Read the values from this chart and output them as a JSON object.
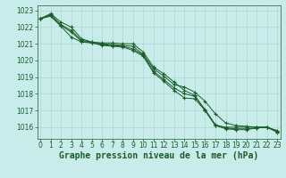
{
  "title": "Graphe pression niveau de la mer (hPa)",
  "background_color": "#c8ece9",
  "grid_color": "#b0d4d0",
  "line_color": "#1a5c2a",
  "hours": [
    0,
    1,
    2,
    3,
    4,
    5,
    6,
    7,
    8,
    9,
    10,
    11,
    12,
    13,
    14,
    15,
    16,
    17,
    18,
    19,
    20,
    21,
    22,
    23
  ],
  "series": [
    [
      1022.5,
      1022.8,
      1022.3,
      1022.0,
      1021.3,
      1021.1,
      1021.05,
      1021.05,
      1021.0,
      1021.0,
      1020.5,
      1019.6,
      1019.2,
      1018.7,
      1018.2,
      1017.9,
      1017.0,
      1016.1,
      1016.0,
      1016.0,
      1016.0,
      1016.0,
      1016.0,
      1015.8
    ],
    [
      1022.5,
      1022.75,
      1022.15,
      1021.8,
      1021.2,
      1021.1,
      1021.0,
      1020.95,
      1020.9,
      1020.85,
      1020.35,
      1019.5,
      1019.05,
      1018.55,
      1018.4,
      1018.1,
      1017.55,
      1016.8,
      1016.25,
      1016.1,
      1016.05,
      1016.0,
      1016.0,
      1015.75
    ],
    [
      1022.5,
      1022.7,
      1022.1,
      1021.7,
      1021.15,
      1021.05,
      1020.95,
      1020.9,
      1020.85,
      1020.7,
      1020.3,
      1019.35,
      1018.85,
      1018.35,
      1018.0,
      1017.85,
      1017.05,
      1016.15,
      1015.95,
      1015.9,
      1015.9,
      1015.95,
      1016.0,
      1015.72
    ],
    [
      1022.5,
      1022.65,
      1022.05,
      1021.4,
      1021.1,
      1021.05,
      1020.9,
      1020.85,
      1020.8,
      1020.6,
      1020.25,
      1019.25,
      1018.75,
      1018.2,
      1017.75,
      1017.7,
      1017.0,
      1016.1,
      1015.9,
      1015.85,
      1015.85,
      1015.95,
      1016.0,
      1015.7
    ]
  ],
  "ylim": [
    1015.3,
    1023.3
  ],
  "yticks": [
    1016,
    1017,
    1018,
    1019,
    1020,
    1021,
    1022,
    1023
  ],
  "xlim": [
    -0.3,
    23.3
  ],
  "tick_fontsize": 5.5,
  "xlabel_fontsize": 7,
  "figsize": [
    3.2,
    2.0
  ],
  "dpi": 100
}
